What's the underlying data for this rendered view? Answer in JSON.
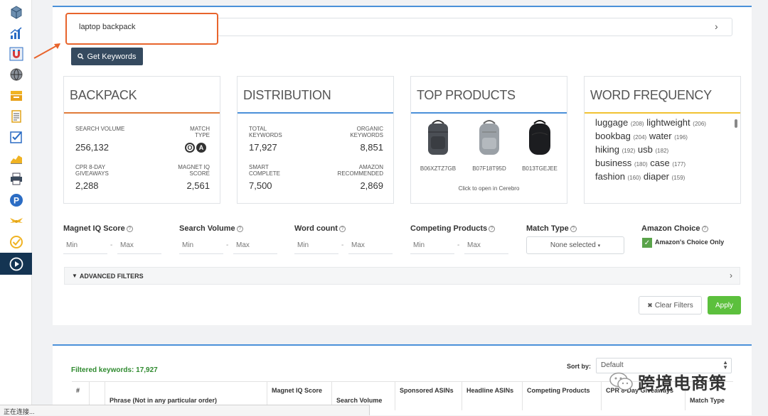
{
  "colors": {
    "accent_blue": "#4a90d9",
    "highlight_orange": "#e8642c",
    "apply_green": "#5cc03d",
    "nav_dark": "#143452",
    "card_rule_backpack": "#e07b3a",
    "card_rule_distribution": "#4a90d9",
    "card_rule_top_products": "#4a90d9",
    "card_rule_word_frequency": "#f1c232"
  },
  "sidebar": {
    "items": [
      {
        "icon": "box-3d-icon"
      },
      {
        "icon": "bar-chart-icon"
      },
      {
        "icon": "magnet-icon",
        "active": false
      },
      {
        "icon": "globe-icon"
      },
      {
        "icon": "inbox-stack-icon"
      },
      {
        "icon": "document-list-icon"
      },
      {
        "icon": "checklist-icon"
      },
      {
        "icon": "line-chart-icon"
      },
      {
        "icon": "printer-icon"
      },
      {
        "icon": "parking-p-icon"
      },
      {
        "icon": "wings-icon"
      },
      {
        "icon": "check-circle-icon"
      },
      {
        "icon": "play-circle-icon",
        "active": true
      }
    ]
  },
  "search": {
    "value": "laptop backpack",
    "button_label": "Get Keywords"
  },
  "cards": {
    "backpack": {
      "title": "BACKPACK",
      "search_volume_label": "SEARCH VOLUME",
      "search_volume": "256,132",
      "match_type_label": "MATCH TYPE",
      "badge_o": "O",
      "badge_a": "A",
      "cpr_label": "CPR 8-DAY GIVEAWAYS",
      "cpr_value": "2,288",
      "magnet_label": "MAGNET IQ SCORE",
      "magnet_value": "2,561"
    },
    "distribution": {
      "title": "DISTRIBUTION",
      "total_label": "TOTAL KEYWORDS",
      "total_value": "17,927",
      "organic_label": "ORGANIC KEYWORDS",
      "organic_value": "8,851",
      "smart_label": "SMART COMPLETE",
      "smart_value": "7,500",
      "amazon_label": "AMAZON RECOMMENDED",
      "amazon_value": "2,869"
    },
    "top_products": {
      "title": "TOP PRODUCTS",
      "products": [
        {
          "asin": "B06XZTZ7GB",
          "color": "#4b4f55"
        },
        {
          "asin": "B07F18T95D",
          "color": "#9aa0a6"
        },
        {
          "asin": "B013TGEJEE",
          "color": "#1c1d20"
        }
      ],
      "caption": "Click to open in Cerebro"
    },
    "word_frequency": {
      "title": "WORD FREQUENCY",
      "rows": [
        [
          {
            "word": "luggage",
            "count": "(208)"
          },
          {
            "word": "lightweight",
            "count": "(206)"
          }
        ],
        [
          {
            "word": "bookbag",
            "count": "(204)"
          },
          {
            "word": "water",
            "count": "(196)"
          }
        ],
        [
          {
            "word": "hiking",
            "count": "(192)"
          },
          {
            "word": "usb",
            "count": "(182)"
          }
        ],
        [
          {
            "word": "business",
            "count": "(180)"
          },
          {
            "word": "case",
            "count": "(177)"
          }
        ],
        [
          {
            "word": "fashion",
            "count": "(160)"
          },
          {
            "word": "diaper",
            "count": "(159)"
          }
        ]
      ]
    }
  },
  "filters": {
    "magnet_iq": {
      "label": "Magnet IQ Score",
      "min": "Min",
      "max": "Max"
    },
    "search_volume": {
      "label": "Search Volume",
      "min": "Min",
      "max": "Max"
    },
    "word_count": {
      "label": "Word count",
      "min": "Min",
      "max": "Max"
    },
    "competing_products": {
      "label": "Competing Products",
      "min": "Min",
      "max": "Max"
    },
    "match_type": {
      "label": "Match Type",
      "selected": "None selected"
    },
    "amazon_choice": {
      "label": "Amazon Choice",
      "checkbox_label": "Amazon's Choice Only",
      "checked": true
    },
    "advanced": "ADVANCED FILTERS",
    "clear_label": "Clear Filters",
    "apply_label": "Apply"
  },
  "results": {
    "filtered_text": "Filtered keywords: 17,927",
    "sort_label": "Sort by:",
    "sort_value": "Default",
    "columns": [
      "#",
      "",
      "Phrase (Not in any particular order)",
      "Magnet IQ Score",
      "Search Volume",
      "Sponsored ASINs",
      "Headline ASINs",
      "Competing Products",
      "CPR 8-Day Giveaways",
      "Match Type"
    ]
  },
  "watermark": {
    "text": "跨境电商策"
  },
  "status_bar": {
    "text": "正在连接..."
  }
}
